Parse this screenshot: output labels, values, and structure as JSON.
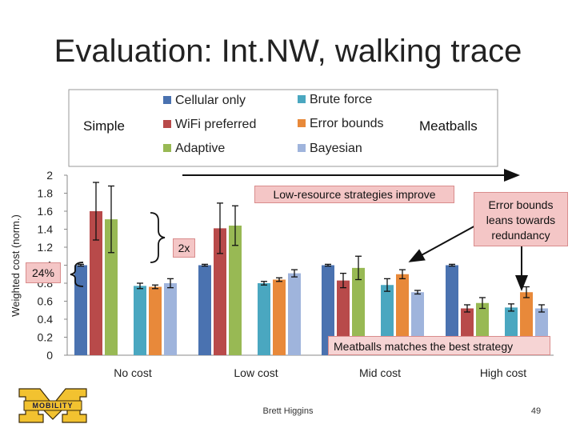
{
  "slide": {
    "title": "Evaluation: Int.NW, walking trace",
    "author": "Brett Higgins",
    "page": "49",
    "logo_text": "MOBILITY"
  },
  "legend": {
    "simple_label": "Simple",
    "meatballs_label": "Meatballs"
  },
  "annotations": {
    "improve": "Low-resource strategies improve",
    "error_bounds": "Error bounds leans towards redundancy",
    "meatballs_best": "Meatballs matches the best strategy",
    "two_x": "2x",
    "pct": "24%"
  },
  "colors": {
    "Cellular only": "#4a72b0",
    "WiFi preferred": "#b84a4a",
    "Adaptive": "#98b954",
    "Brute force": "#4aa7c0",
    "Error bounds": "#e8893a",
    "Bayesian": "#9fb4dc"
  },
  "chart_data": {
    "type": "bar",
    "categories": [
      "No cost",
      "Low cost",
      "Mid cost",
      "High cost"
    ],
    "ylabel": "Weighted cost (norm.)",
    "ylim": [
      0,
      2
    ],
    "yticks": [
      "0",
      "0.2",
      "0.4",
      "0.6",
      "0.8",
      "1",
      "1.2",
      "1.4",
      "1.6",
      "1.8",
      "2"
    ],
    "series": [
      {
        "name": "Cellular only",
        "values": [
          1.0,
          1.0,
          1.0,
          1.0
        ],
        "errors": [
          0.01,
          0.01,
          0.01,
          0.01
        ]
      },
      {
        "name": "WiFi preferred",
        "values": [
          1.6,
          1.41,
          0.83,
          0.52
        ],
        "errors": [
          0.32,
          0.28,
          0.08,
          0.04
        ]
      },
      {
        "name": "Adaptive",
        "values": [
          1.51,
          1.44,
          0.97,
          0.58
        ],
        "errors": [
          0.37,
          0.22,
          0.13,
          0.06
        ]
      },
      {
        "name": "Brute force",
        "values": [
          0.77,
          0.8,
          0.78,
          0.53
        ],
        "errors": [
          0.03,
          0.02,
          0.07,
          0.04
        ]
      },
      {
        "name": "Error bounds",
        "values": [
          0.76,
          0.84,
          0.9,
          0.7
        ],
        "errors": [
          0.02,
          0.02,
          0.05,
          0.06
        ]
      },
      {
        "name": "Bayesian",
        "values": [
          0.8,
          0.91,
          0.7,
          0.52
        ],
        "errors": [
          0.05,
          0.04,
          0.02,
          0.04
        ]
      }
    ]
  }
}
